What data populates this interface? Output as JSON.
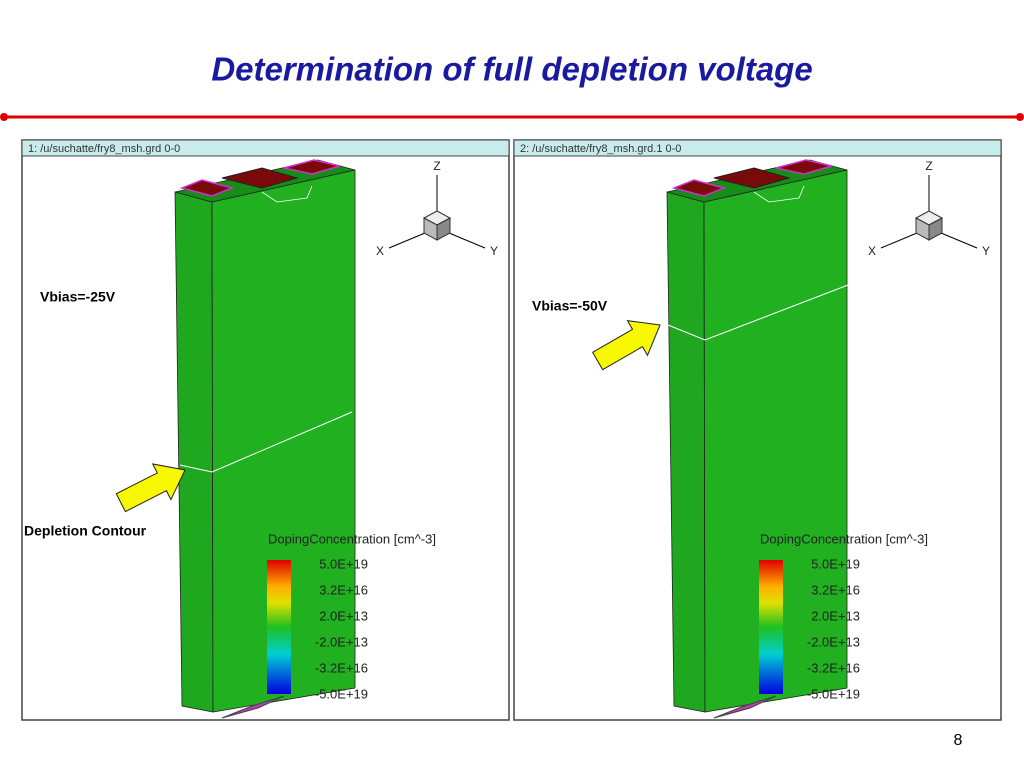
{
  "header": {
    "title": "Determination of full depletion voltage"
  },
  "panels": [
    {
      "window_title": "1: /u/suchatte/fry8_msh.grd 0-0",
      "vbias": "Vbias=-25V",
      "annotation": "Depletion Contour",
      "axes": {
        "z": "Z",
        "x": "X",
        "y": "Y"
      },
      "legend": {
        "title": "DopingConcentration [cm^-3]",
        "labels": [
          "5.0E+19",
          "3.2E+16",
          "2.0E+13",
          "-2.0E+13",
          "-3.2E+16",
          "-5.0E+19"
        ]
      }
    },
    {
      "window_title": "2: /u/suchatte/fry8_msh.grd.1 0-0",
      "vbias": "Vbias=-50V",
      "axes": {
        "z": "Z",
        "x": "X",
        "y": "Y"
      },
      "legend": {
        "title": "DopingConcentration [cm^-3]",
        "labels": [
          "5.0E+19",
          "3.2E+16",
          "2.0E+13",
          "-2.0E+13",
          "-3.2E+16",
          "-5.0E+19"
        ]
      }
    }
  ],
  "page_number": "8"
}
